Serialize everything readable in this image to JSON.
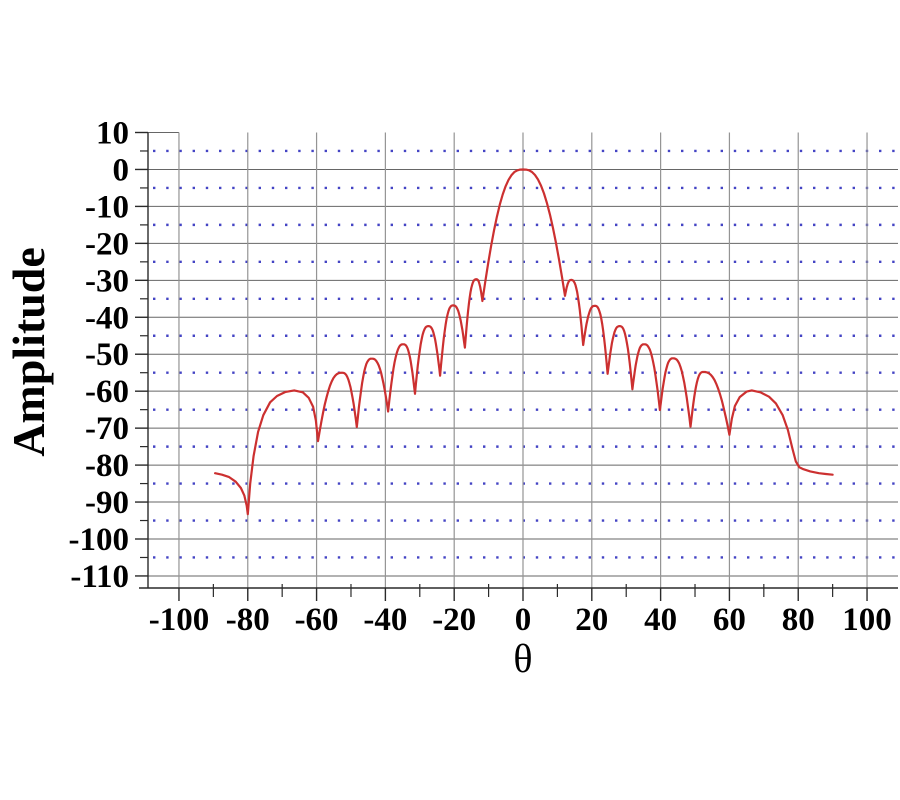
{
  "chart_data": {
    "type": "line",
    "title": "",
    "xlabel": "θ",
    "ylabel": "Amplitude",
    "xlim": [
      -109,
      109
    ],
    "ylim": [
      -111.5,
      10
    ],
    "x_tick_labels": [
      "-100",
      "-80",
      "-60",
      "-40",
      "-20",
      "0",
      "20",
      "40",
      "60",
      "80",
      "100"
    ],
    "x_ticks_major": [
      -100,
      -80,
      -60,
      -40,
      -20,
      0,
      20,
      40,
      60,
      80,
      100
    ],
    "x_ticks_minor": [
      -90,
      -70,
      -50,
      -30,
      -10,
      10,
      30,
      50,
      70,
      90
    ],
    "y_tick_labels": [
      "10",
      "0",
      "-10",
      "-20",
      "-30",
      "-40",
      "-50",
      "-60",
      "-70",
      "-80",
      "-90",
      "-100",
      "-110"
    ],
    "y_ticks_major": [
      10,
      0,
      -10,
      -20,
      -30,
      -40,
      -50,
      -60,
      -70,
      -80,
      -90,
      -100,
      -110
    ],
    "y_ticks_minor": [
      5,
      -5,
      -15,
      -25,
      -35,
      -45,
      -55,
      -65,
      -75,
      -85,
      -95,
      -105
    ],
    "grid": {
      "vertical_solid_at": [
        -100,
        -80,
        -60,
        -40,
        -20,
        0,
        20,
        40,
        60,
        80,
        100
      ],
      "horizontal_solid_at": [
        0,
        -10,
        -20,
        -30,
        -40,
        -50,
        -60,
        -70,
        -80,
        -90,
        -100,
        -110
      ],
      "horizontal_dotted_at": [
        5,
        -5,
        -15,
        -25,
        -35,
        -45,
        -55,
        -65,
        -75,
        -85,
        -95,
        -105
      ],
      "legend": "none"
    },
    "notable_points": {
      "main_lobe_peak": [
        0,
        0
      ],
      "first_sidelobe_level_db": -30,
      "left_notch": [
        -80,
        -93.3
      ],
      "left_endpoint": [
        -89.5,
        -82.2
      ],
      "right_endpoint": [
        90,
        -82.6
      ],
      "sidelobe_peaks": [
        [
          -66.5,
          -59.8
        ],
        [
          -52.6,
          -55.0
        ],
        [
          -44.0,
          -51.2
        ],
        [
          -34.8,
          -47.3
        ],
        [
          -27.5,
          -42.4
        ],
        [
          -20.3,
          -36.8
        ],
        [
          -13.6,
          -29.7
        ],
        [
          14.0,
          -29.9
        ],
        [
          20.9,
          -36.9
        ],
        [
          28.1,
          -42.4
        ],
        [
          35.2,
          -47.3
        ],
        [
          43.6,
          -51.1
        ],
        [
          52.4,
          -54.8
        ],
        [
          66.5,
          -59.8
        ]
      ]
    },
    "series": [
      {
        "name": "amplitude-pattern",
        "color": "#cc3030",
        "segments": [
          {
            "type": "points",
            "pts": [
              [
                -89.5,
                -82.2
              ],
              [
                -87.5,
                -82.6
              ],
              [
                -85.5,
                -83.2
              ],
              [
                -83.5,
                -84.5
              ],
              [
                -82,
                -86.2
              ],
              [
                -81,
                -88.2
              ],
              [
                -80.3,
                -91
              ],
              [
                -80,
                -93.3
              ]
            ]
          },
          {
            "type": "points",
            "pts": [
              [
                -79.3,
                -85
              ],
              [
                -78.3,
                -77.5
              ],
              [
                -77,
                -71
              ],
              [
                -75.5,
                -66.5
              ],
              [
                -73.5,
                -63
              ],
              [
                -71.5,
                -61.3
              ],
              [
                -69,
                -60.2
              ],
              [
                -66.5,
                -59.8
              ],
              [
                -64,
                -60.3
              ],
              [
                -62.3,
                -61.8
              ],
              [
                -61,
                -64.2
              ],
              [
                -60.2,
                -68
              ],
              [
                -59.6,
                -73.5
              ]
            ]
          },
          {
            "type": "lobe",
            "n1": [
              -59.6,
              -73.5
            ],
            "peak": [
              -52.6,
              -55.0
            ],
            "n2": [
              -48.3,
              -69.7
            ]
          },
          {
            "type": "lobe",
            "n1": [
              -48.3,
              -69.7
            ],
            "peak": [
              -44.0,
              -51.2
            ],
            "n2": [
              -39.2,
              -65.5
            ]
          },
          {
            "type": "lobe",
            "n1": [
              -39.2,
              -65.5
            ],
            "peak": [
              -34.8,
              -47.3
            ],
            "n2": [
              -31.4,
              -60.7
            ]
          },
          {
            "type": "lobe",
            "n1": [
              -31.4,
              -60.7
            ],
            "peak": [
              -27.5,
              -42.4
            ],
            "n2": [
              -24.1,
              -55.8
            ]
          },
          {
            "type": "lobe",
            "n1": [
              -24.1,
              -55.8
            ],
            "peak": [
              -20.3,
              -36.8
            ],
            "n2": [
              -16.9,
              -48.2
            ]
          },
          {
            "type": "lobe",
            "n1": [
              -16.9,
              -48.2
            ],
            "peak": [
              -13.6,
              -29.7
            ],
            "n2": [
              -11.8,
              -35.6
            ]
          },
          {
            "type": "lobe",
            "n1": [
              -11.8,
              -35.6
            ],
            "peak": [
              0,
              0
            ],
            "n2": [
              12.2,
              -34.2
            ]
          },
          {
            "type": "lobe",
            "n1": [
              12.2,
              -34.2
            ],
            "peak": [
              14.0,
              -29.9
            ],
            "n2": [
              17.5,
              -47.5
            ]
          },
          {
            "type": "lobe",
            "n1": [
              17.5,
              -47.5
            ],
            "peak": [
              20.9,
              -36.9
            ],
            "n2": [
              24.6,
              -55.3
            ]
          },
          {
            "type": "lobe",
            "n1": [
              24.6,
              -55.3
            ],
            "peak": [
              28.1,
              -42.4
            ],
            "n2": [
              31.8,
              -59.5
            ]
          },
          {
            "type": "lobe",
            "n1": [
              31.8,
              -59.5
            ],
            "peak": [
              35.2,
              -47.3
            ],
            "n2": [
              39.8,
              -65.1
            ]
          },
          {
            "type": "lobe",
            "n1": [
              39.8,
              -65.1
            ],
            "peak": [
              43.6,
              -51.1
            ],
            "n2": [
              48.7,
              -69.6
            ]
          },
          {
            "type": "lobe",
            "n1": [
              48.7,
              -69.6
            ],
            "peak": [
              52.4,
              -54.8
            ],
            "n2": [
              60.0,
              -71.8
            ]
          },
          {
            "type": "points",
            "pts": [
              [
                60,
                -71.8
              ],
              [
                60.7,
                -67.5
              ],
              [
                61.6,
                -64
              ],
              [
                63,
                -61.6
              ],
              [
                65,
                -60.1
              ],
              [
                66.5,
                -59.8
              ],
              [
                69,
                -60.3
              ],
              [
                71.5,
                -61.5
              ],
              [
                73.5,
                -63.3
              ],
              [
                75.5,
                -66.5
              ],
              [
                77,
                -70.5
              ],
              [
                78.3,
                -75.5
              ],
              [
                79.3,
                -79
              ],
              [
                80.3,
                -80.6
              ],
              [
                81.5,
                -81.1
              ],
              [
                83.5,
                -81.7
              ],
              [
                86,
                -82.2
              ],
              [
                88,
                -82.4
              ],
              [
                90,
                -82.6
              ]
            ]
          }
        ]
      }
    ]
  },
  "colors": {
    "background": "#ffffff",
    "curve": "#cc3030",
    "grid_horizontal": "#666666",
    "grid_vertical": "#949494",
    "grid_dotted": "#4444c4",
    "axis": "#2a2a2a",
    "text": "#000000"
  }
}
